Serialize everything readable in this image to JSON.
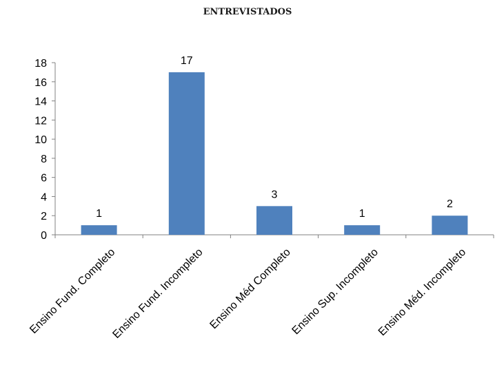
{
  "chart_data": {
    "type": "bar",
    "title": "ENTREVISTADOS",
    "categories": [
      "Ensino Fund. Completo",
      "Ensino Fund. Incompleto",
      "Ensino Méd Completo",
      "Ensino Sup. Incompleto",
      "Ensino Méd. Incompleto"
    ],
    "values": [
      1,
      17,
      3,
      1,
      2
    ],
    "data_labels": [
      "1",
      "17",
      "3",
      "1",
      "2"
    ],
    "ylim": [
      0,
      18
    ],
    "yticks": [
      "0",
      "2",
      "4",
      "6",
      "8",
      "10",
      "12",
      "14",
      "16",
      "18"
    ],
    "xlabel": "",
    "ylabel": "",
    "grid": false,
    "legend": "none",
    "colors": {
      "bar": "#4F81BD",
      "axis": "#808080",
      "text": "#000000"
    }
  }
}
